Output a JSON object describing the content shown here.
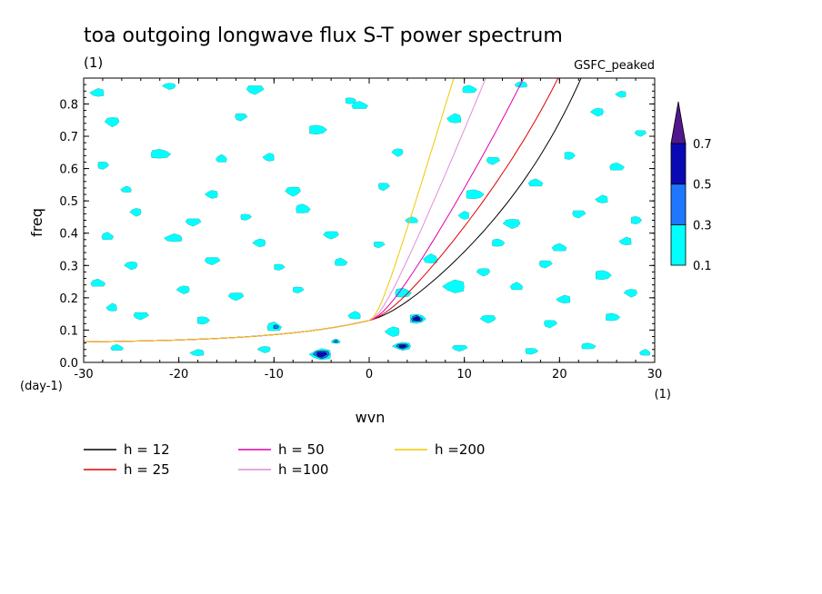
{
  "chart_data": {
    "type": "heatmap",
    "title": "toa outgoing longwave flux S-T power spectrum",
    "subtitle_left": "(1)",
    "subtitle_right": "GSFC_peaked",
    "xlabel": "wvn",
    "ylabel": "freq",
    "x_unit": "(1)",
    "y_unit": "(day-1)",
    "xlim": [
      -30,
      30
    ],
    "ylim": [
      0,
      0.88
    ],
    "x_ticks": [
      -30,
      -20,
      -10,
      0,
      10,
      20,
      30
    ],
    "x_tick_labels": [
      "-30",
      "-20",
      "-10",
      "0",
      "10",
      "20",
      "30"
    ],
    "y_ticks": [
      0.0,
      0.1,
      0.2,
      0.3,
      0.4,
      0.5,
      0.6,
      0.7,
      0.8
    ],
    "y_tick_labels": [
      "0.0",
      "0.1",
      "0.2",
      "0.3",
      "0.4",
      "0.5",
      "0.6",
      "0.7",
      "0.8"
    ],
    "colorbar": {
      "levels": [
        0.1,
        0.3,
        0.5,
        0.7
      ],
      "level_labels": [
        "0.1",
        "0.3",
        "0.5",
        "0.7"
      ],
      "colors": [
        "#00ffff",
        "#1e78ff",
        "#0a0ab4",
        "#50188c"
      ]
    },
    "contour_patches": [
      {
        "x": -28.5,
        "y": 0.835,
        "level": 0.1,
        "w": 1.6,
        "h": 0.025
      },
      {
        "x": -21.0,
        "y": 0.855,
        "level": 0.1,
        "w": 1.4,
        "h": 0.02
      },
      {
        "x": -12.0,
        "y": 0.845,
        "level": 0.1,
        "w": 1.8,
        "h": 0.03
      },
      {
        "x": -2.0,
        "y": 0.81,
        "level": 0.1,
        "w": 1.2,
        "h": 0.02
      },
      {
        "x": 10.5,
        "y": 0.845,
        "level": 0.1,
        "w": 1.6,
        "h": 0.025
      },
      {
        "x": 16.0,
        "y": 0.86,
        "level": 0.1,
        "w": 1.4,
        "h": 0.02
      },
      {
        "x": 26.5,
        "y": 0.83,
        "level": 0.1,
        "w": 1.2,
        "h": 0.02
      },
      {
        "x": -27.0,
        "y": 0.745,
        "level": 0.1,
        "w": 1.5,
        "h": 0.03
      },
      {
        "x": -13.5,
        "y": 0.76,
        "level": 0.1,
        "w": 1.3,
        "h": 0.025
      },
      {
        "x": -5.5,
        "y": 0.72,
        "level": 0.1,
        "w": 2.0,
        "h": 0.03
      },
      {
        "x": -1.0,
        "y": 0.795,
        "level": 0.1,
        "w": 1.8,
        "h": 0.025
      },
      {
        "x": 9.0,
        "y": 0.755,
        "level": 0.1,
        "w": 1.6,
        "h": 0.03
      },
      {
        "x": 24.0,
        "y": 0.775,
        "level": 0.1,
        "w": 1.4,
        "h": 0.025
      },
      {
        "x": 28.5,
        "y": 0.71,
        "level": 0.1,
        "w": 1.2,
        "h": 0.02
      },
      {
        "x": -28.0,
        "y": 0.61,
        "level": 0.1,
        "w": 1.2,
        "h": 0.025
      },
      {
        "x": -22.0,
        "y": 0.645,
        "level": 0.1,
        "w": 2.2,
        "h": 0.03
      },
      {
        "x": -15.5,
        "y": 0.63,
        "level": 0.1,
        "w": 1.2,
        "h": 0.025
      },
      {
        "x": -10.5,
        "y": 0.635,
        "level": 0.1,
        "w": 1.3,
        "h": 0.025
      },
      {
        "x": 3.0,
        "y": 0.65,
        "level": 0.1,
        "w": 1.2,
        "h": 0.025
      },
      {
        "x": 13.0,
        "y": 0.625,
        "level": 0.1,
        "w": 1.4,
        "h": 0.025
      },
      {
        "x": 21.0,
        "y": 0.64,
        "level": 0.1,
        "w": 1.2,
        "h": 0.025
      },
      {
        "x": 26.0,
        "y": 0.605,
        "level": 0.1,
        "w": 1.6,
        "h": 0.025
      },
      {
        "x": -25.5,
        "y": 0.535,
        "level": 0.1,
        "w": 1.2,
        "h": 0.02
      },
      {
        "x": -16.5,
        "y": 0.52,
        "level": 0.1,
        "w": 1.4,
        "h": 0.025
      },
      {
        "x": -8.0,
        "y": 0.53,
        "level": 0.1,
        "w": 1.6,
        "h": 0.03
      },
      {
        "x": 1.5,
        "y": 0.545,
        "level": 0.1,
        "w": 1.2,
        "h": 0.025
      },
      {
        "x": 11.0,
        "y": 0.52,
        "level": 0.1,
        "w": 2.0,
        "h": 0.03
      },
      {
        "x": 17.5,
        "y": 0.555,
        "level": 0.1,
        "w": 1.6,
        "h": 0.025
      },
      {
        "x": 24.5,
        "y": 0.505,
        "level": 0.1,
        "w": 1.4,
        "h": 0.025
      },
      {
        "x": -24.5,
        "y": 0.465,
        "level": 0.1,
        "w": 1.2,
        "h": 0.025
      },
      {
        "x": -18.5,
        "y": 0.435,
        "level": 0.1,
        "w": 1.6,
        "h": 0.025
      },
      {
        "x": -13.0,
        "y": 0.45,
        "level": 0.1,
        "w": 1.2,
        "h": 0.02
      },
      {
        "x": -7.0,
        "y": 0.475,
        "level": 0.1,
        "w": 1.6,
        "h": 0.03
      },
      {
        "x": 4.5,
        "y": 0.44,
        "level": 0.1,
        "w": 1.4,
        "h": 0.02
      },
      {
        "x": 10.0,
        "y": 0.455,
        "level": 0.1,
        "w": 1.2,
        "h": 0.025
      },
      {
        "x": 15.0,
        "y": 0.43,
        "level": 0.1,
        "w": 1.8,
        "h": 0.03
      },
      {
        "x": 22.0,
        "y": 0.46,
        "level": 0.1,
        "w": 1.4,
        "h": 0.025
      },
      {
        "x": 28.0,
        "y": 0.44,
        "level": 0.1,
        "w": 1.2,
        "h": 0.025
      },
      {
        "x": -27.5,
        "y": 0.39,
        "level": 0.1,
        "w": 1.3,
        "h": 0.025
      },
      {
        "x": -20.5,
        "y": 0.385,
        "level": 0.1,
        "w": 2.0,
        "h": 0.025
      },
      {
        "x": -11.5,
        "y": 0.37,
        "level": 0.1,
        "w": 1.4,
        "h": 0.025
      },
      {
        "x": -4.0,
        "y": 0.395,
        "level": 0.1,
        "w": 1.6,
        "h": 0.025
      },
      {
        "x": 1.0,
        "y": 0.365,
        "level": 0.1,
        "w": 1.2,
        "h": 0.02
      },
      {
        "x": 13.5,
        "y": 0.37,
        "level": 0.1,
        "w": 1.4,
        "h": 0.025
      },
      {
        "x": 20.0,
        "y": 0.355,
        "level": 0.1,
        "w": 1.6,
        "h": 0.025
      },
      {
        "x": 27.0,
        "y": 0.375,
        "level": 0.1,
        "w": 1.4,
        "h": 0.025
      },
      {
        "x": -25.0,
        "y": 0.3,
        "level": 0.1,
        "w": 1.4,
        "h": 0.025
      },
      {
        "x": -16.5,
        "y": 0.315,
        "level": 0.1,
        "w": 1.6,
        "h": 0.025
      },
      {
        "x": -9.5,
        "y": 0.295,
        "level": 0.1,
        "w": 1.2,
        "h": 0.02
      },
      {
        "x": -3.0,
        "y": 0.31,
        "level": 0.1,
        "w": 1.4,
        "h": 0.025
      },
      {
        "x": 6.5,
        "y": 0.32,
        "level": 0.1,
        "w": 1.6,
        "h": 0.03
      },
      {
        "x": 9.0,
        "y": 0.235,
        "level": 0.1,
        "w": 2.4,
        "h": 0.04
      },
      {
        "x": 12.0,
        "y": 0.28,
        "level": 0.1,
        "w": 1.4,
        "h": 0.025
      },
      {
        "x": 18.5,
        "y": 0.305,
        "level": 0.1,
        "w": 1.4,
        "h": 0.025
      },
      {
        "x": 24.5,
        "y": 0.27,
        "level": 0.1,
        "w": 1.8,
        "h": 0.03
      },
      {
        "x": -28.5,
        "y": 0.245,
        "level": 0.1,
        "w": 1.6,
        "h": 0.025
      },
      {
        "x": -27.0,
        "y": 0.17,
        "level": 0.1,
        "w": 1.2,
        "h": 0.025
      },
      {
        "x": -19.5,
        "y": 0.225,
        "level": 0.1,
        "w": 1.4,
        "h": 0.025
      },
      {
        "x": -14.0,
        "y": 0.205,
        "level": 0.1,
        "w": 1.6,
        "h": 0.025
      },
      {
        "x": -7.5,
        "y": 0.225,
        "level": 0.1,
        "w": 1.2,
        "h": 0.02
      },
      {
        "x": 3.5,
        "y": 0.215,
        "level": 0.1,
        "w": 1.8,
        "h": 0.03
      },
      {
        "x": 15.5,
        "y": 0.235,
        "level": 0.1,
        "w": 1.4,
        "h": 0.025
      },
      {
        "x": 20.5,
        "y": 0.195,
        "level": 0.1,
        "w": 1.6,
        "h": 0.025
      },
      {
        "x": 27.5,
        "y": 0.215,
        "level": 0.1,
        "w": 1.4,
        "h": 0.025
      },
      {
        "x": -24.0,
        "y": 0.145,
        "level": 0.1,
        "w": 1.6,
        "h": 0.025
      },
      {
        "x": -17.5,
        "y": 0.13,
        "level": 0.1,
        "w": 1.4,
        "h": 0.025
      },
      {
        "x": -10.0,
        "y": 0.11,
        "level": 0.1,
        "w": 1.6,
        "h": 0.03
      },
      {
        "x": -1.5,
        "y": 0.145,
        "level": 0.1,
        "w": 1.4,
        "h": 0.025
      },
      {
        "x": 2.5,
        "y": 0.095,
        "level": 0.1,
        "w": 1.6,
        "h": 0.03
      },
      {
        "x": 12.5,
        "y": 0.135,
        "level": 0.1,
        "w": 1.6,
        "h": 0.025
      },
      {
        "x": 19.0,
        "y": 0.12,
        "level": 0.1,
        "w": 1.4,
        "h": 0.025
      },
      {
        "x": 25.5,
        "y": 0.14,
        "level": 0.1,
        "w": 1.6,
        "h": 0.025
      },
      {
        "x": -26.5,
        "y": 0.045,
        "level": 0.1,
        "w": 1.4,
        "h": 0.02
      },
      {
        "x": -18.0,
        "y": 0.03,
        "level": 0.1,
        "w": 1.6,
        "h": 0.02
      },
      {
        "x": -11.0,
        "y": 0.04,
        "level": 0.1,
        "w": 1.4,
        "h": 0.02
      },
      {
        "x": 9.5,
        "y": 0.045,
        "level": 0.1,
        "w": 1.6,
        "h": 0.02
      },
      {
        "x": 17.0,
        "y": 0.035,
        "level": 0.1,
        "w": 1.4,
        "h": 0.02
      },
      {
        "x": 23.0,
        "y": 0.05,
        "level": 0.1,
        "w": 1.6,
        "h": 0.02
      },
      {
        "x": 29.0,
        "y": 0.03,
        "level": 0.1,
        "w": 1.2,
        "h": 0.02
      },
      {
        "x": -5.0,
        "y": 0.025,
        "level": 0.1,
        "w": 2.4,
        "h": 0.035
      },
      {
        "x": -5.0,
        "y": 0.025,
        "level": 0.3,
        "w": 1.7,
        "h": 0.025
      },
      {
        "x": -5.0,
        "y": 0.025,
        "level": 0.5,
        "w": 1.1,
        "h": 0.017
      },
      {
        "x": 5.0,
        "y": 0.135,
        "level": 0.1,
        "w": 1.8,
        "h": 0.03
      },
      {
        "x": 5.0,
        "y": 0.135,
        "level": 0.3,
        "w": 1.2,
        "h": 0.021
      },
      {
        "x": 5.0,
        "y": 0.135,
        "level": 0.5,
        "w": 0.8,
        "h": 0.013
      },
      {
        "x": 3.5,
        "y": 0.05,
        "level": 0.1,
        "w": 2.0,
        "h": 0.025
      },
      {
        "x": 3.5,
        "y": 0.05,
        "level": 0.3,
        "w": 1.3,
        "h": 0.016
      },
      {
        "x": 3.5,
        "y": 0.05,
        "level": 0.5,
        "w": 0.8,
        "h": 0.01
      },
      {
        "x": -9.8,
        "y": 0.11,
        "level": 0.3,
        "w": 0.6,
        "h": 0.012
      },
      {
        "x": -3.5,
        "y": 0.065,
        "level": 0.1,
        "w": 1.0,
        "h": 0.015
      },
      {
        "x": -3.5,
        "y": 0.065,
        "level": 0.3,
        "w": 0.5,
        "h": 0.008
      }
    ],
    "series": [
      {
        "name": "h = 12",
        "h": 12,
        "color": "#000000"
      },
      {
        "name": "h = 25",
        "h": 25,
        "color": "#e00000"
      },
      {
        "name": "h = 50",
        "h": 50,
        "color": "#e000b0"
      },
      {
        "name": "h =100",
        "h": 100,
        "color": "#e08cdc"
      },
      {
        "name": "h =200",
        "h": 200,
        "color": "#f0c800"
      }
    ],
    "legend_placement": "below-chart"
  }
}
